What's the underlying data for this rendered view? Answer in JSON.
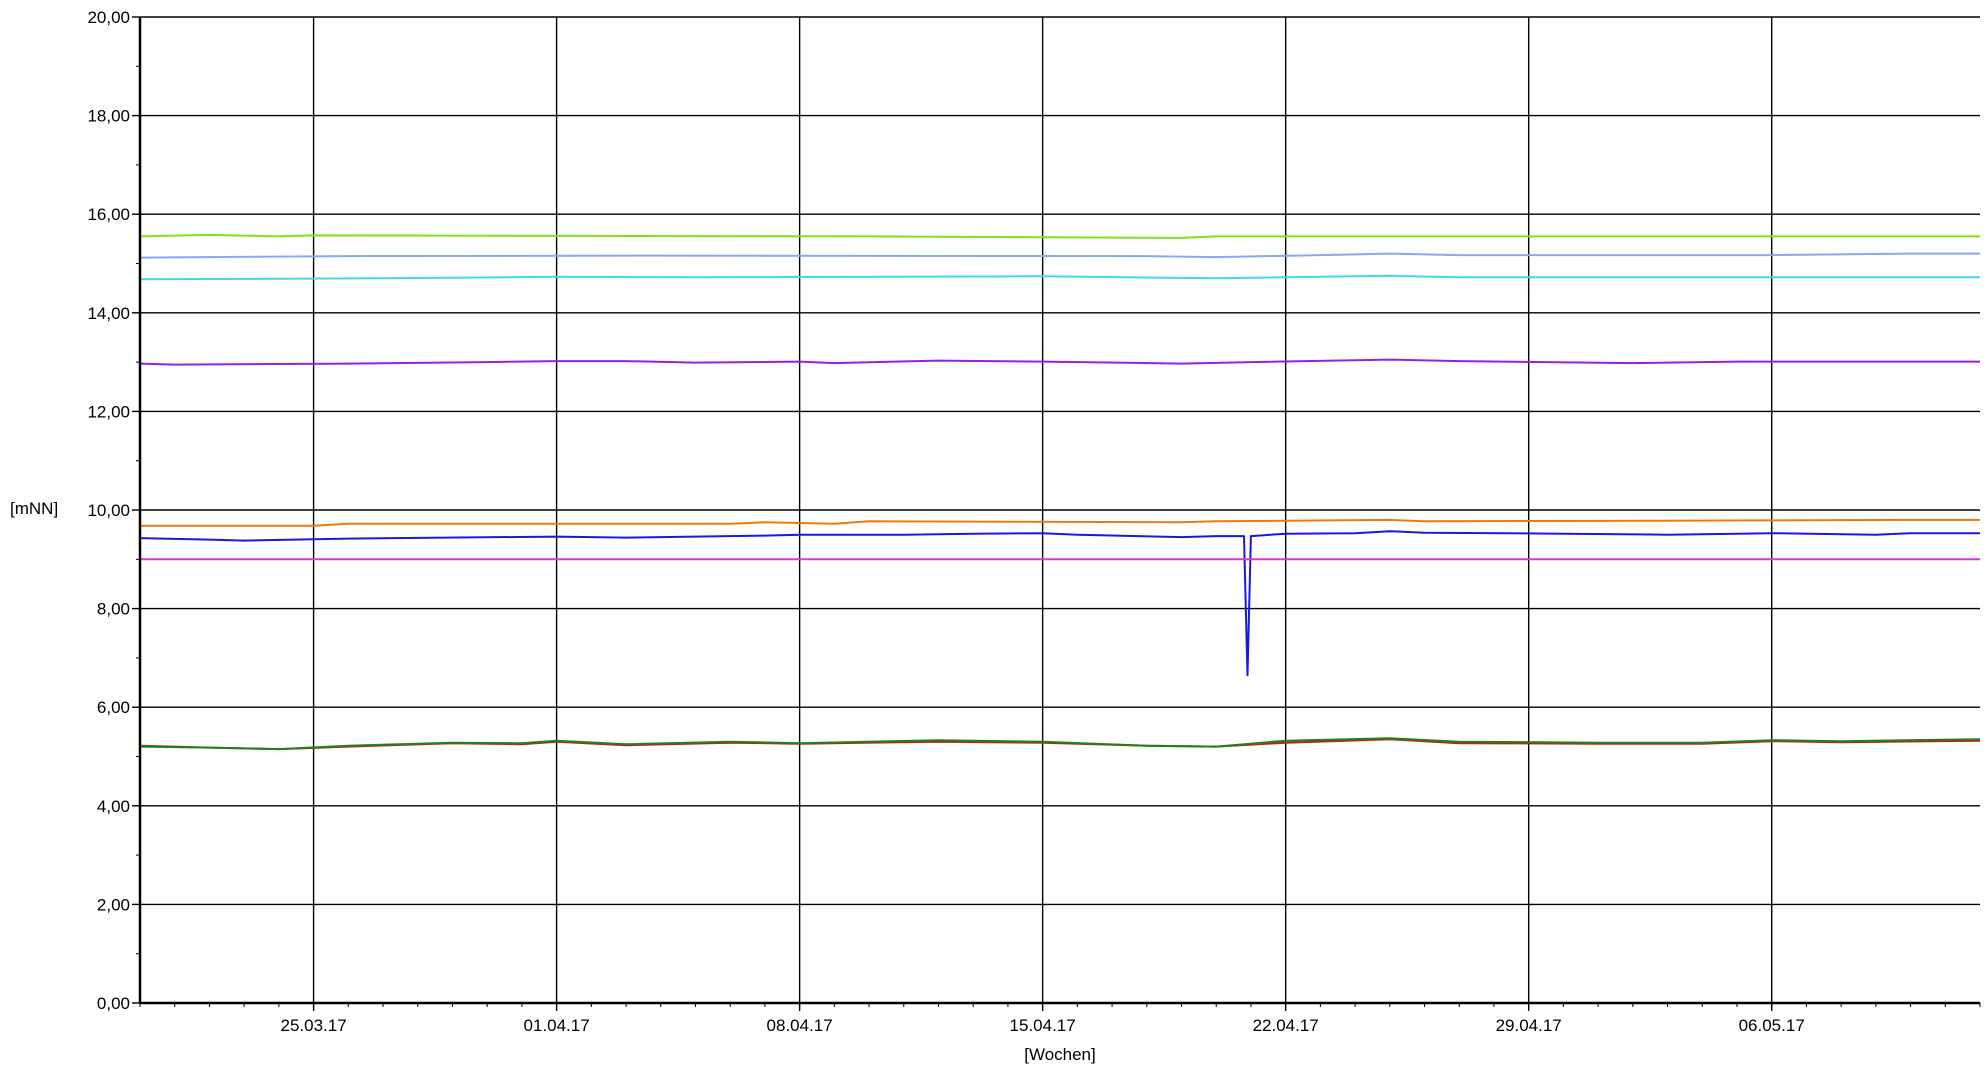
{
  "chart_data": {
    "type": "line",
    "title": "",
    "xlabel": "[Wochen]",
    "ylabel": "[mNN]",
    "ylim": [
      0,
      20
    ],
    "xlim": [
      "2017-03-20",
      "2017-05-12"
    ],
    "grid": true,
    "legend": "none",
    "y_ticks": [
      "0,00",
      "2,00",
      "4,00",
      "6,00",
      "8,00",
      "10,00",
      "12,00",
      "14,00",
      "16,00",
      "18,00",
      "20,00"
    ],
    "y_tick_values": [
      0,
      2,
      4,
      6,
      8,
      10,
      12,
      14,
      16,
      18,
      20
    ],
    "x_ticks": [
      "25.03.17",
      "01.04.17",
      "08.04.17",
      "15.04.17",
      "22.04.17",
      "29.04.17",
      "06.05.17"
    ],
    "x_tick_dates": [
      "2017-03-25",
      "2017-04-01",
      "2017-04-08",
      "2017-04-15",
      "2017-04-22",
      "2017-04-29",
      "2017-05-06"
    ],
    "series": [
      {
        "color": "#80e020",
        "points": [
          [
            "2017-03-20",
            15.55
          ],
          [
            "2017-03-22",
            15.58
          ],
          [
            "2017-03-24",
            15.55
          ],
          [
            "2017-03-25",
            15.57
          ],
          [
            "2017-04-10",
            15.55
          ],
          [
            "2017-04-19",
            15.52
          ],
          [
            "2017-04-20",
            15.55
          ],
          [
            "2017-05-12",
            15.55
          ]
        ]
      },
      {
        "color": "#8aa8f0",
        "points": [
          [
            "2017-03-20",
            15.12
          ],
          [
            "2017-03-26",
            15.15
          ],
          [
            "2017-04-04",
            15.16
          ],
          [
            "2017-04-18",
            15.15
          ],
          [
            "2017-04-20",
            15.13
          ],
          [
            "2017-04-23",
            15.17
          ],
          [
            "2017-04-25",
            15.2
          ],
          [
            "2017-04-27",
            15.17
          ],
          [
            "2017-05-06",
            15.17
          ],
          [
            "2017-05-10",
            15.2
          ],
          [
            "2017-05-12",
            15.2
          ]
        ]
      },
      {
        "color": "#40d8e8",
        "points": [
          [
            "2017-03-20",
            14.68
          ],
          [
            "2017-03-27",
            14.7
          ],
          [
            "2017-04-01",
            14.73
          ],
          [
            "2017-04-05",
            14.72
          ],
          [
            "2017-04-15",
            14.74
          ],
          [
            "2017-04-20",
            14.7
          ],
          [
            "2017-04-25",
            14.75
          ],
          [
            "2017-04-27",
            14.72
          ],
          [
            "2017-05-12",
            14.72
          ]
        ]
      },
      {
        "color": "#9b20d8",
        "points": [
          [
            "2017-03-20",
            12.97
          ],
          [
            "2017-03-21",
            12.95
          ],
          [
            "2017-03-26",
            12.97
          ],
          [
            "2017-03-30",
            13.0
          ],
          [
            "2017-04-01",
            13.02
          ],
          [
            "2017-04-03",
            13.02
          ],
          [
            "2017-04-05",
            12.99
          ],
          [
            "2017-04-08",
            13.01
          ],
          [
            "2017-04-09",
            12.98
          ],
          [
            "2017-04-12",
            13.03
          ],
          [
            "2017-04-15",
            13.01
          ],
          [
            "2017-04-19",
            12.97
          ],
          [
            "2017-04-21",
            13.0
          ],
          [
            "2017-04-25",
            13.05
          ],
          [
            "2017-04-27",
            13.02
          ],
          [
            "2017-05-02",
            12.98
          ],
          [
            "2017-05-05",
            13.01
          ],
          [
            "2017-05-12",
            13.01
          ]
        ]
      },
      {
        "color": "#f07810",
        "points": [
          [
            "2017-03-20",
            9.68
          ],
          [
            "2017-03-25",
            9.68
          ],
          [
            "2017-03-26",
            9.72
          ],
          [
            "2017-04-06",
            9.72
          ],
          [
            "2017-04-07",
            9.75
          ],
          [
            "2017-04-09",
            9.72
          ],
          [
            "2017-04-10",
            9.77
          ],
          [
            "2017-04-19",
            9.75
          ],
          [
            "2017-04-20",
            9.77
          ],
          [
            "2017-04-25",
            9.8
          ],
          [
            "2017-04-26",
            9.77
          ],
          [
            "2017-05-06",
            9.79
          ],
          [
            "2017-05-10",
            9.8
          ],
          [
            "2017-05-12",
            9.8
          ]
        ]
      },
      {
        "color": "#1818e0",
        "points": [
          [
            "2017-03-20",
            9.43
          ],
          [
            "2017-03-22",
            9.4
          ],
          [
            "2017-03-23",
            9.38
          ],
          [
            "2017-03-26",
            9.42
          ],
          [
            "2017-04-01",
            9.46
          ],
          [
            "2017-04-03",
            9.44
          ],
          [
            "2017-04-07",
            9.48
          ],
          [
            "2017-04-08",
            9.5
          ],
          [
            "2017-04-11",
            9.5
          ],
          [
            "2017-04-13",
            9.52
          ],
          [
            "2017-04-15",
            9.53
          ],
          [
            "2017-04-16",
            9.5
          ],
          [
            "2017-04-19",
            9.45
          ],
          [
            "2017-04-20",
            9.47
          ],
          [
            "2017-04-20.8",
            9.47
          ],
          [
            "2017-04-20.9",
            6.65
          ],
          [
            "2017-04-21.0",
            9.47
          ],
          [
            "2017-04-22",
            9.52
          ],
          [
            "2017-04-24",
            9.53
          ],
          [
            "2017-04-25",
            9.57
          ],
          [
            "2017-04-26",
            9.54
          ],
          [
            "2017-04-30",
            9.52
          ],
          [
            "2017-05-03",
            9.5
          ],
          [
            "2017-05-06",
            9.53
          ],
          [
            "2017-05-09",
            9.5
          ],
          [
            "2017-05-10",
            9.53
          ],
          [
            "2017-05-12",
            9.53
          ]
        ]
      },
      {
        "color": "#e030e0",
        "points": [
          [
            "2017-03-20",
            9.0
          ],
          [
            "2017-05-12",
            9.0
          ]
        ]
      },
      {
        "color": "#c02010",
        "points": [
          [
            "2017-03-20",
            5.22
          ],
          [
            "2017-03-22",
            5.18
          ],
          [
            "2017-03-24",
            5.15
          ],
          [
            "2017-03-26",
            5.2
          ],
          [
            "2017-03-29",
            5.27
          ],
          [
            "2017-03-31",
            5.25
          ],
          [
            "2017-04-01",
            5.3
          ],
          [
            "2017-04-03",
            5.23
          ],
          [
            "2017-04-06",
            5.28
          ],
          [
            "2017-04-08",
            5.26
          ],
          [
            "2017-04-12",
            5.3
          ],
          [
            "2017-04-15",
            5.28
          ],
          [
            "2017-04-18",
            5.22
          ],
          [
            "2017-04-20",
            5.2
          ],
          [
            "2017-04-22",
            5.28
          ],
          [
            "2017-04-25",
            5.35
          ],
          [
            "2017-04-27",
            5.27
          ],
          [
            "2017-05-01",
            5.26
          ],
          [
            "2017-05-04",
            5.26
          ],
          [
            "2017-05-06",
            5.31
          ],
          [
            "2017-05-08",
            5.29
          ],
          [
            "2017-05-12",
            5.32
          ]
        ]
      },
      {
        "color": "#208020",
        "points": [
          [
            "2017-03-20",
            5.2
          ],
          [
            "2017-03-22",
            5.18
          ],
          [
            "2017-03-24",
            5.15
          ],
          [
            "2017-03-26",
            5.22
          ],
          [
            "2017-03-29",
            5.28
          ],
          [
            "2017-03-31",
            5.27
          ],
          [
            "2017-04-01",
            5.32
          ],
          [
            "2017-04-03",
            5.25
          ],
          [
            "2017-04-06",
            5.3
          ],
          [
            "2017-04-08",
            5.27
          ],
          [
            "2017-04-12",
            5.33
          ],
          [
            "2017-04-15",
            5.3
          ],
          [
            "2017-04-18",
            5.22
          ],
          [
            "2017-04-20",
            5.2
          ],
          [
            "2017-04-22",
            5.32
          ],
          [
            "2017-04-25",
            5.37
          ],
          [
            "2017-04-27",
            5.3
          ],
          [
            "2017-05-01",
            5.28
          ],
          [
            "2017-05-04",
            5.28
          ],
          [
            "2017-05-06",
            5.33
          ],
          [
            "2017-05-08",
            5.31
          ],
          [
            "2017-05-12",
            5.35
          ]
        ]
      }
    ]
  }
}
